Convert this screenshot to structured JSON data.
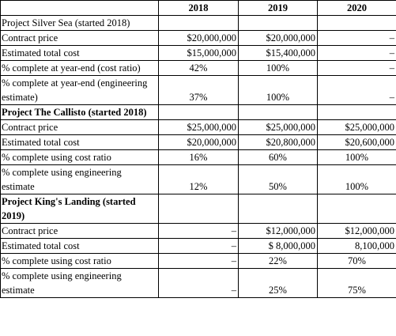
{
  "header": [
    "",
    "2018",
    "2019",
    "2020"
  ],
  "sections": [
    {
      "title": "Project Silver Sea (started 2018)",
      "title_bold": false,
      "rows": [
        {
          "label": "Contract price",
          "v2018": "$20,000,000",
          "v2019": "$20,000,000",
          "v2020": "–"
        },
        {
          "label": "Estimated total cost",
          "v2018": "$15,000,000",
          "v2019": "$15,400,000",
          "v2020": "–"
        },
        {
          "label": "% complete at year-end (cost ratio)",
          "v2018": "42%",
          "v2019": "100%",
          "v2020": "–"
        },
        {
          "label": "% complete at year-end (engineering estimate)",
          "v2018": "37%",
          "v2019": "100%",
          "v2020": "–"
        }
      ]
    },
    {
      "title": "Project The Callisto (started 2018)",
      "title_bold": true,
      "rows": [
        {
          "label": "Contract price",
          "v2018": "$25,000,000",
          "v2019": "$25,000,000",
          "v2020": "$25,000,000"
        },
        {
          "label": "Estimated total cost",
          "v2018": "$20,000,000",
          "v2019": "$20,800,000",
          "v2020": "$20,600,000"
        },
        {
          "label": "% complete using cost ratio",
          "v2018": "16%",
          "v2019": "60%",
          "v2020": "100%"
        },
        {
          "label": "% complete using engineering estimate",
          "v2018": "12%",
          "v2019": "50%",
          "v2020": "100%"
        }
      ]
    },
    {
      "title": "Project King's Landing (started 2019)",
      "title_bold": true,
      "rows": [
        {
          "label": "Contract price",
          "v2018": "–",
          "v2019": "$12,000,000",
          "v2020": "$12,000,000"
        },
        {
          "label": "Estimated total cost",
          "v2018": "–",
          "v2019": "$ 8,000,000",
          "v2020": "8,100,000"
        },
        {
          "label": "% complete using cost ratio",
          "v2018": "–",
          "v2019": "22%",
          "v2020": "70%"
        },
        {
          "label": "% complete using engineering estimate",
          "v2018": "–",
          "v2019": "25%",
          "v2020": "75%"
        }
      ]
    }
  ]
}
